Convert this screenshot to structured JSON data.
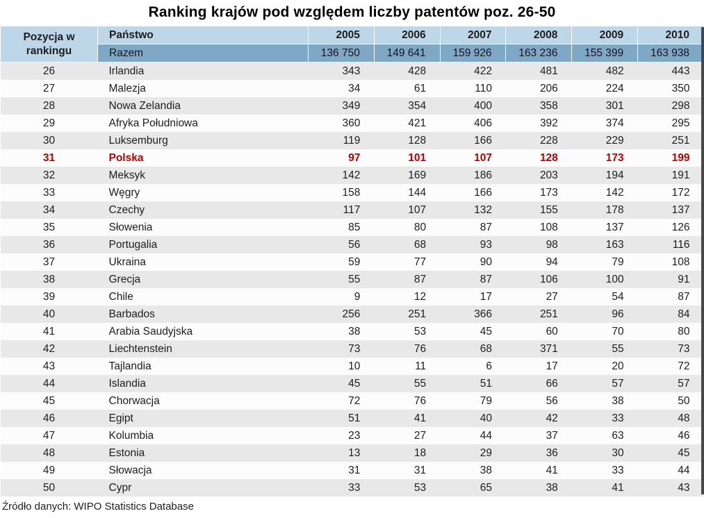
{
  "colors": {
    "header_bg": "#bdd6e8",
    "total_row_bg": "#7fa7c6",
    "stripe_bg": "#e8e8e8",
    "row_bg": "#fcfcfc",
    "highlight_text": "#c00000",
    "text": "#1d1d1d"
  },
  "chart_data": {
    "type": "table",
    "title": "Ranking krajów pod względem liczby patentów poz. 26-50",
    "position_header": "Pozycja w rankingu",
    "country_header": "Państwo",
    "years": [
      "2005",
      "2006",
      "2007",
      "2008",
      "2009",
      "2010"
    ],
    "total_row": {
      "label": "Razem",
      "values": [
        "136 750",
        "149 641",
        "159 926",
        "163 236",
        "155 399",
        "163 938"
      ]
    },
    "rows": [
      {
        "position": 26,
        "country": "Irlandia",
        "values": [
          343,
          428,
          422,
          481,
          482,
          443
        ]
      },
      {
        "position": 27,
        "country": "Malezja",
        "values": [
          34,
          61,
          110,
          206,
          224,
          350
        ]
      },
      {
        "position": 28,
        "country": "Nowa Zelandia",
        "values": [
          349,
          354,
          400,
          358,
          301,
          298
        ]
      },
      {
        "position": 29,
        "country": "Afryka Południowa",
        "values": [
          360,
          421,
          406,
          392,
          374,
          295
        ]
      },
      {
        "position": 30,
        "country": "Luksemburg",
        "values": [
          119,
          128,
          166,
          228,
          229,
          251
        ]
      },
      {
        "position": 31,
        "country": "Polska",
        "values": [
          97,
          101,
          107,
          128,
          173,
          199
        ],
        "highlight": true
      },
      {
        "position": 32,
        "country": "Meksyk",
        "values": [
          142,
          169,
          186,
          203,
          194,
          191
        ]
      },
      {
        "position": 33,
        "country": "Węgry",
        "values": [
          158,
          144,
          166,
          173,
          142,
          172
        ]
      },
      {
        "position": 34,
        "country": "Czechy",
        "values": [
          117,
          107,
          132,
          155,
          178,
          137
        ]
      },
      {
        "position": 35,
        "country": "Słowenia",
        "values": [
          85,
          80,
          87,
          108,
          137,
          126
        ]
      },
      {
        "position": 36,
        "country": "Portugalia",
        "values": [
          56,
          68,
          93,
          98,
          163,
          116
        ]
      },
      {
        "position": 37,
        "country": "Ukraina",
        "values": [
          59,
          77,
          90,
          94,
          79,
          108
        ]
      },
      {
        "position": 38,
        "country": "Grecja",
        "values": [
          55,
          87,
          87,
          106,
          100,
          91
        ]
      },
      {
        "position": 39,
        "country": "Chile",
        "values": [
          9,
          12,
          17,
          27,
          54,
          87
        ]
      },
      {
        "position": 40,
        "country": "Barbados",
        "values": [
          256,
          251,
          366,
          251,
          96,
          84
        ]
      },
      {
        "position": 41,
        "country": "Arabia Saudyjska",
        "values": [
          38,
          53,
          45,
          60,
          70,
          80
        ]
      },
      {
        "position": 42,
        "country": "Liechtenstein",
        "values": [
          73,
          76,
          68,
          371,
          55,
          73
        ]
      },
      {
        "position": 43,
        "country": "Tajlandia",
        "values": [
          10,
          11,
          6,
          17,
          20,
          72
        ]
      },
      {
        "position": 44,
        "country": "Islandia",
        "values": [
          45,
          55,
          51,
          66,
          57,
          57
        ]
      },
      {
        "position": 45,
        "country": "Chorwacja",
        "values": [
          72,
          76,
          79,
          56,
          38,
          50
        ]
      },
      {
        "position": 46,
        "country": "Egipt",
        "values": [
          51,
          41,
          40,
          42,
          33,
          48
        ]
      },
      {
        "position": 47,
        "country": "Kolumbia",
        "values": [
          23,
          27,
          44,
          37,
          63,
          46
        ]
      },
      {
        "position": 48,
        "country": "Estonia",
        "values": [
          13,
          18,
          29,
          36,
          30,
          45
        ]
      },
      {
        "position": 49,
        "country": "Słowacja",
        "values": [
          31,
          31,
          38,
          41,
          33,
          44
        ]
      },
      {
        "position": 50,
        "country": "Cypr",
        "values": [
          33,
          53,
          65,
          38,
          41,
          43
        ]
      }
    ],
    "source": "Źródło danych: WIPO Statistics Database"
  }
}
